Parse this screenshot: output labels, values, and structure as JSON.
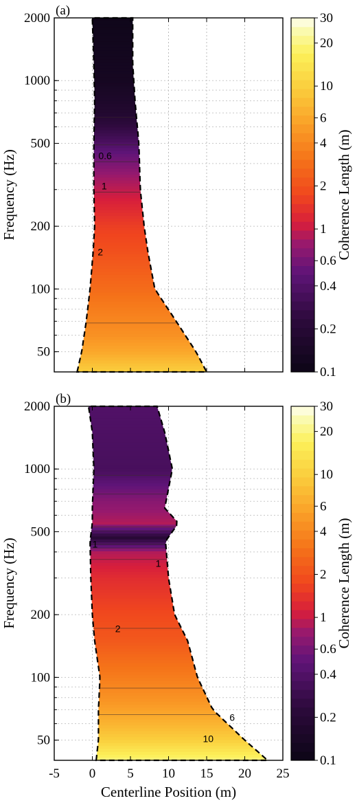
{
  "chart_data": [
    {
      "type": "heatmap",
      "panel_label": "(a)",
      "xlabel": "",
      "ylabel": "Frequency (Hz)",
      "xlim": [
        -5,
        25
      ],
      "ylim": [
        40,
        2000
      ],
      "y_scale": "log",
      "x_ticks": [
        -5,
        0,
        5,
        10,
        15,
        20,
        25
      ],
      "y_ticks": [
        50,
        100,
        200,
        500,
        1000,
        2000
      ],
      "y_tick_labels": [
        "50",
        "100",
        "200",
        "500",
        "1000",
        "2000"
      ],
      "grid": true,
      "colorbar": {
        "label": "Coherence Length (m)",
        "scale": "log",
        "ticks": [
          0.1,
          0.2,
          0.4,
          0.6,
          1,
          2,
          4,
          6,
          10,
          20,
          30
        ],
        "tick_labels": [
          "0.1",
          "0.2",
          "0.4",
          "0.6",
          "1",
          "2",
          "4",
          "6",
          "10",
          "20",
          "30"
        ]
      },
      "region_edges": [
        {
          "f": 40,
          "left": -2.0,
          "right": 15.0
        },
        {
          "f": 50,
          "left": -1.4,
          "right": 13.6
        },
        {
          "f": 70,
          "left": -0.8,
          "right": 11.0
        },
        {
          "f": 100,
          "left": -0.3,
          "right": 8.2
        },
        {
          "f": 150,
          "left": 0.1,
          "right": 7.3
        },
        {
          "f": 200,
          "left": 0.3,
          "right": 6.8
        },
        {
          "f": 300,
          "left": 0.2,
          "right": 6.3
        },
        {
          "f": 500,
          "left": 0.2,
          "right": 6.1
        },
        {
          "f": 800,
          "left": 0.3,
          "right": 5.6
        },
        {
          "f": 1200,
          "left": 0.2,
          "right": 5.3
        },
        {
          "f": 2000,
          "left": 0.0,
          "right": 5.3
        }
      ],
      "coherence_by_frequency": [
        {
          "f": 40,
          "value": 10
        },
        {
          "f": 50,
          "value": 6
        },
        {
          "f": 60,
          "value": 4.5
        },
        {
          "f": 80,
          "value": 3.5
        },
        {
          "f": 100,
          "value": 2.8
        },
        {
          "f": 150,
          "value": 2.0
        },
        {
          "f": 200,
          "value": 1.6
        },
        {
          "f": 280,
          "value": 1.05
        },
        {
          "f": 350,
          "value": 0.8
        },
        {
          "f": 450,
          "value": 0.5
        },
        {
          "f": 550,
          "value": 0.3
        },
        {
          "f": 700,
          "value": 0.18
        },
        {
          "f": 1000,
          "value": 0.13
        },
        {
          "f": 2000,
          "value": 0.11
        }
      ],
      "contour_labels": [
        {
          "text": "0.6",
          "x": 0.8,
          "f": 420
        },
        {
          "text": "1",
          "x": 1.2,
          "f": 300
        },
        {
          "text": "2",
          "x": 0.7,
          "f": 145
        }
      ]
    },
    {
      "type": "heatmap",
      "panel_label": "(b)",
      "xlabel": "Centerline Position (m)",
      "ylabel": "Frequency (Hz)",
      "xlim": [
        -5,
        25
      ],
      "ylim": [
        40,
        2000
      ],
      "y_scale": "log",
      "x_ticks": [
        -5,
        0,
        5,
        10,
        15,
        20,
        25
      ],
      "x_tick_labels": [
        "-5",
        "0",
        "5",
        "10",
        "15",
        "20",
        "25"
      ],
      "y_ticks": [
        50,
        100,
        200,
        500,
        1000,
        2000
      ],
      "y_tick_labels": [
        "50",
        "100",
        "200",
        "500",
        "1000",
        "2000"
      ],
      "grid": true,
      "colorbar": {
        "label": "Coherence Length (m)",
        "scale": "log",
        "ticks": [
          0.1,
          0.2,
          0.4,
          0.6,
          1,
          2,
          4,
          6,
          10,
          20,
          30
        ],
        "tick_labels": [
          "0.1",
          "0.2",
          "0.4",
          "0.6",
          "1",
          "2",
          "4",
          "6",
          "10",
          "20",
          "30"
        ]
      },
      "region_edges": [
        {
          "f": 40,
          "left": 0.5,
          "right": 23.0
        },
        {
          "f": 50,
          "left": 0.8,
          "right": 20.0
        },
        {
          "f": 70,
          "left": 0.8,
          "right": 15.8
        },
        {
          "f": 100,
          "left": 1.0,
          "right": 13.8
        },
        {
          "f": 150,
          "left": 0.3,
          "right": 12.5
        },
        {
          "f": 200,
          "left": 0.0,
          "right": 10.8
        },
        {
          "f": 300,
          "left": -0.2,
          "right": 10.0
        },
        {
          "f": 450,
          "left": -0.3,
          "right": 9.6
        },
        {
          "f": 550,
          "left": 0.0,
          "right": 11.3
        },
        {
          "f": 650,
          "left": 0.0,
          "right": 9.5
        },
        {
          "f": 1000,
          "left": 0.2,
          "right": 10.5
        },
        {
          "f": 1500,
          "left": 0.0,
          "right": 9.5
        },
        {
          "f": 2000,
          "left": -0.5,
          "right": 8.5
        }
      ],
      "coherence_by_frequency": [
        {
          "f": 40,
          "value": 20
        },
        {
          "f": 50,
          "value": 10
        },
        {
          "f": 60,
          "value": 7
        },
        {
          "f": 80,
          "value": 4.5
        },
        {
          "f": 100,
          "value": 3.5
        },
        {
          "f": 150,
          "value": 2.2
        },
        {
          "f": 200,
          "value": 1.8
        },
        {
          "f": 300,
          "value": 1.3
        },
        {
          "f": 400,
          "value": 0.9
        },
        {
          "f": 470,
          "value": 0.2
        },
        {
          "f": 550,
          "value": 0.9
        },
        {
          "f": 700,
          "value": 0.7
        },
        {
          "f": 1000,
          "value": 0.35
        },
        {
          "f": 2000,
          "value": 0.4
        }
      ],
      "contour_labels": [
        {
          "text": "1",
          "x": 0.0,
          "f": 420
        },
        {
          "text": "1",
          "x": 8.3,
          "f": 340
        },
        {
          "text": "2",
          "x": 3.0,
          "f": 165
        },
        {
          "text": "6",
          "x": 18.0,
          "f": 62
        },
        {
          "text": "10",
          "x": 14.5,
          "f": 49
        }
      ]
    }
  ]
}
